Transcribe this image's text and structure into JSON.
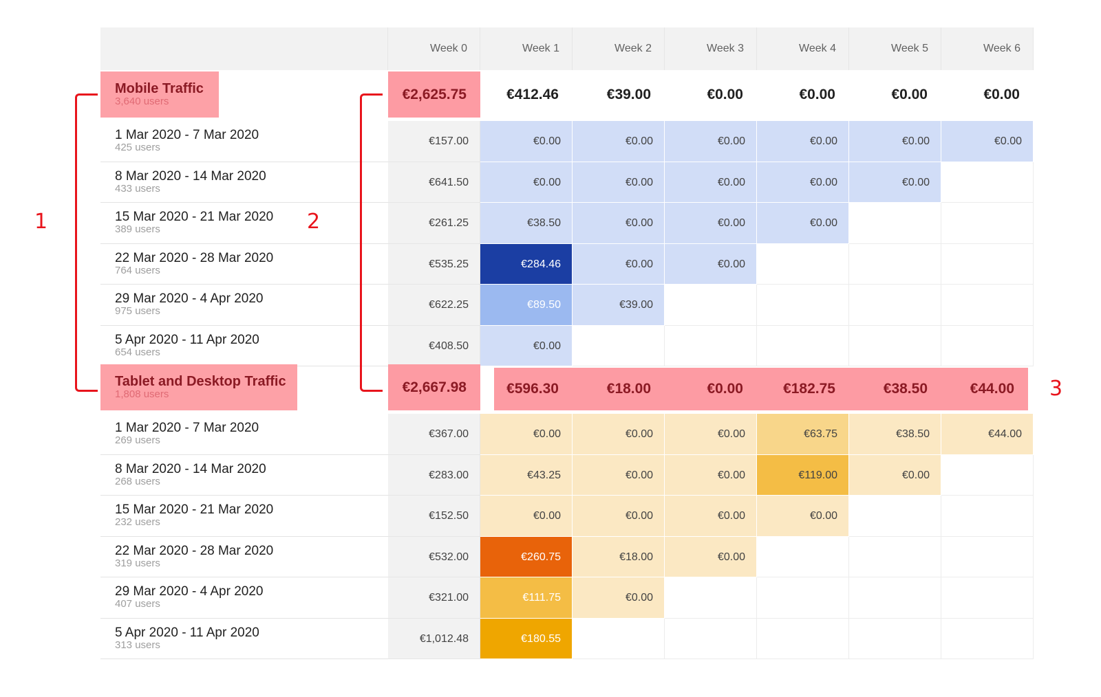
{
  "weeks": [
    "Week 0",
    "Week 1",
    "Week 2",
    "Week 3",
    "Week 4",
    "Week 5",
    "Week 6"
  ],
  "segments": [
    {
      "title": "Mobile Traffic",
      "users": "3,640 users",
      "totals": [
        "€2,625.75",
        "€412.46",
        "€39.00",
        "€0.00",
        "€0.00",
        "€0.00",
        "€0.00"
      ],
      "rows": [
        {
          "range": "1 Mar 2020 - 7 Mar 2020",
          "users": "425 users",
          "values": [
            "€157.00",
            "€0.00",
            "€0.00",
            "€0.00",
            "€0.00",
            "€0.00",
            "€0.00"
          ]
        },
        {
          "range": "8 Mar 2020 - 14 Mar 2020",
          "users": "433 users",
          "values": [
            "€641.50",
            "€0.00",
            "€0.00",
            "€0.00",
            "€0.00",
            "€0.00"
          ]
        },
        {
          "range": "15 Mar 2020 - 21 Mar 2020",
          "users": "389 users",
          "values": [
            "€261.25",
            "€38.50",
            "€0.00",
            "€0.00",
            "€0.00"
          ]
        },
        {
          "range": "22 Mar 2020 - 28 Mar 2020",
          "users": "764 users",
          "values": [
            "€535.25",
            "€284.46",
            "€0.00",
            "€0.00"
          ]
        },
        {
          "range": "29 Mar 2020 - 4 Apr 2020",
          "users": "975 users",
          "values": [
            "€622.25",
            "€89.50",
            "€39.00"
          ]
        },
        {
          "range": "5 Apr 2020 - 11 Apr 2020",
          "users": "654 users",
          "values": [
            "€408.50",
            "€0.00"
          ]
        }
      ],
      "colors": [
        [
          null,
          "#d1ddf7",
          "#d1ddf7",
          "#d1ddf7",
          "#d1ddf7",
          "#d1ddf7",
          "#d1ddf7"
        ],
        [
          null,
          "#d1ddf7",
          "#d1ddf7",
          "#d1ddf7",
          "#d1ddf7",
          "#d1ddf7"
        ],
        [
          null,
          "#d1ddf7",
          "#d1ddf7",
          "#d1ddf7",
          "#d1ddf7"
        ],
        [
          null,
          "#1b3ea3",
          "#d1ddf7",
          "#d1ddf7"
        ],
        [
          null,
          "#9bb9f0",
          "#d1ddf7"
        ],
        [
          null,
          "#d1ddf7"
        ]
      ]
    },
    {
      "title": "Tablet and Desktop Traffic",
      "users": "1,808 users",
      "totals": [
        "€2,667.98",
        "€596.30",
        "€18.00",
        "€0.00",
        "€182.75",
        "€38.50",
        "€44.00"
      ],
      "rows": [
        {
          "range": "1 Mar 2020 - 7 Mar 2020",
          "users": "269 users",
          "values": [
            "€367.00",
            "€0.00",
            "€0.00",
            "€0.00",
            "€63.75",
            "€38.50",
            "€44.00"
          ]
        },
        {
          "range": "8 Mar 2020 - 14 Mar 2020",
          "users": "268 users",
          "values": [
            "€283.00",
            "€43.25",
            "€0.00",
            "€0.00",
            "€119.00",
            "€0.00"
          ]
        },
        {
          "range": "15 Mar 2020 - 21 Mar 2020",
          "users": "232 users",
          "values": [
            "€152.50",
            "€0.00",
            "€0.00",
            "€0.00",
            "€0.00"
          ]
        },
        {
          "range": "22 Mar 2020 - 28 Mar 2020",
          "users": "319 users",
          "values": [
            "€532.00",
            "€260.75",
            "€18.00",
            "€0.00"
          ]
        },
        {
          "range": "29 Mar 2020 - 4 Apr 2020",
          "users": "407 users",
          "values": [
            "€321.00",
            "€111.75",
            "€0.00"
          ]
        },
        {
          "range": "5 Apr 2020 - 11 Apr 2020",
          "users": "313 users",
          "values": [
            "€1,012.48",
            "€180.55"
          ]
        }
      ],
      "colors": [
        [
          null,
          "#fbe8c3",
          "#fbe8c3",
          "#fbe8c3",
          "#f8d68a",
          "#fbe8c3",
          "#fbe8c3"
        ],
        [
          null,
          "#fbe8c3",
          "#fbe8c3",
          "#fbe8c3",
          "#f4bd45",
          "#fbe8c3"
        ],
        [
          null,
          "#fbe8c3",
          "#fbe8c3",
          "#fbe8c3",
          "#fbe8c3"
        ],
        [
          null,
          "#e8630a",
          "#fbe8c3",
          "#fbe8c3"
        ],
        [
          null,
          "#f4bd45",
          "#fbe8c3"
        ],
        [
          null,
          "#efa600"
        ]
      ]
    }
  ],
  "annotations": [
    "1",
    "2",
    "3"
  ]
}
